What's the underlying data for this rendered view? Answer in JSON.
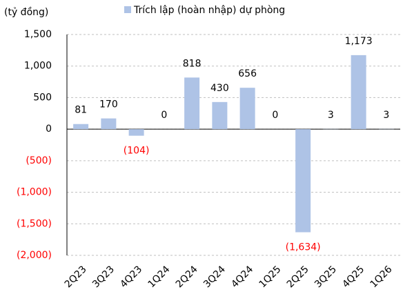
{
  "chart_data": {
    "type": "bar",
    "y_axis_label": "(tỷ đồng)",
    "categories": [
      "2Q23",
      "3Q23",
      "4Q23",
      "1Q24",
      "2Q24",
      "3Q24",
      "4Q24",
      "1Q25",
      "2Q25",
      "3Q25",
      "4Q25",
      "1Q26"
    ],
    "series": [
      {
        "name": "Trích lập (hoàn nhập) dự phòng",
        "color": "#aec3e6",
        "values": [
          81,
          170,
          -104,
          0,
          818,
          430,
          656,
          0,
          -1634,
          3,
          1173,
          3
        ],
        "value_labels": [
          "81",
          "170",
          "(104)",
          "0",
          "818",
          "430",
          "656",
          "0",
          "(1,634)",
          "3",
          "1,173",
          "3"
        ]
      }
    ],
    "ylim": [
      -2000,
      1500
    ],
    "yticks": [
      {
        "value": -2000,
        "label": "(2,000)"
      },
      {
        "value": -1500,
        "label": "(1,500)"
      },
      {
        "value": -1000,
        "label": "(1,000)"
      },
      {
        "value": -500,
        "label": "(500)"
      },
      0,
      500,
      {
        "value": 1000,
        "label": "1,000"
      },
      {
        "value": 1500,
        "label": "1,500"
      }
    ],
    "grid": true,
    "negative_color": "#ff0000"
  }
}
